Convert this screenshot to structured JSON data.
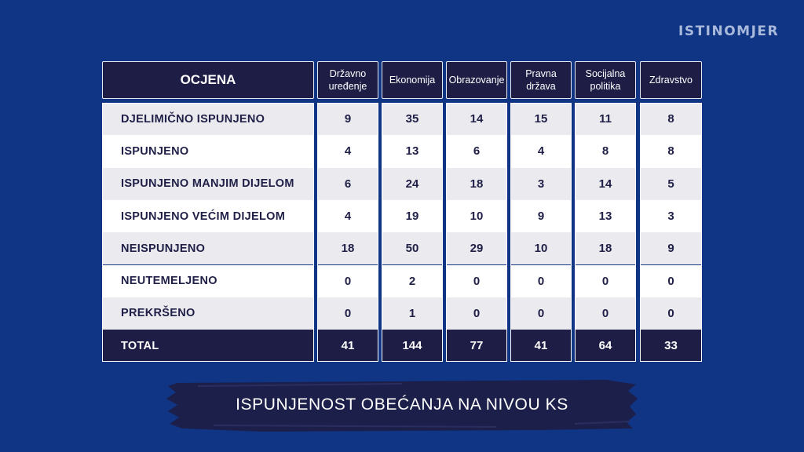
{
  "brand": {
    "logo_text": "ISTINOMJER"
  },
  "chart_data": {
    "type": "table",
    "corner_header": "OCJENA",
    "columns": [
      "Državno uređenje",
      "Ekonomija",
      "Obrazovanje",
      "Pravna država",
      "Socijalna politika",
      "Zdravstvo"
    ],
    "rows": [
      {
        "label": "DJELIMIČNO ISPUNJENO",
        "values": [
          9,
          35,
          14,
          15,
          11,
          8
        ]
      },
      {
        "label": "ISPUNJENO",
        "values": [
          4,
          13,
          6,
          4,
          8,
          8
        ]
      },
      {
        "label": "ISPUNJENO MANJIM DIJELOM",
        "values": [
          6,
          24,
          18,
          3,
          14,
          5
        ]
      },
      {
        "label": "ISPUNJENO VEĆIM DIJELOM",
        "values": [
          4,
          19,
          10,
          9,
          13,
          3
        ]
      },
      {
        "label": "NEISPUNJENO",
        "values": [
          18,
          50,
          29,
          10,
          18,
          9
        ]
      },
      {
        "label": "NEUTEMELJENO",
        "values": [
          0,
          2,
          0,
          0,
          0,
          0
        ]
      },
      {
        "label": "PREKRŠENO",
        "values": [
          0,
          1,
          0,
          0,
          0,
          0
        ]
      }
    ],
    "total": {
      "label": "TOTAL",
      "values": [
        41,
        144,
        77,
        41,
        64,
        33
      ]
    },
    "caption": "ISPUNJENOST OBEĆANJA NA NIVOU KS"
  },
  "colors": {
    "background": "#0f3584",
    "header": "#1d1d45",
    "row_light": "#eaeaef",
    "row_white": "#ffffff",
    "cell_text": "#1f1f47",
    "banner": "#1c1f4a"
  }
}
